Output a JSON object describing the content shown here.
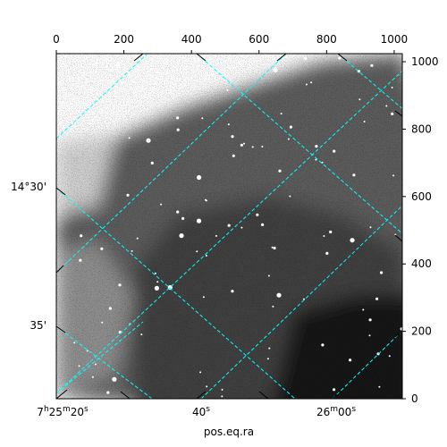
{
  "chart_data": {
    "type": "image",
    "xlabel": "pos.eq.ra",
    "ylabel": "",
    "pixel_axes": {
      "x_range": [
        0,
        1024
      ],
      "y_range": [
        0,
        1024
      ],
      "x_ticks": [
        0,
        200,
        400,
        600,
        800,
        1000
      ],
      "y_ticks": [
        0,
        200,
        400,
        600,
        800,
        1000
      ]
    },
    "world_axes": {
      "ra_tick_labels": [
        "7h25m20s",
        "40s",
        "26m00s"
      ],
      "ra_label_parts": [
        {
          "h": "7",
          "h_unit": "h",
          "m": "25",
          "m_unit": "m",
          "s": "20",
          "s_unit": "s"
        },
        {
          "s": "40",
          "s_unit": "s"
        },
        {
          "m": "26",
          "m_unit": "m",
          "s": "00",
          "s_unit": "s"
        }
      ],
      "dec_tick_labels": [
        "14°30'",
        "35'"
      ]
    },
    "grid": true,
    "grid_color": "#00ffff",
    "image_colormap": "gray",
    "frame_color": "#000000"
  }
}
